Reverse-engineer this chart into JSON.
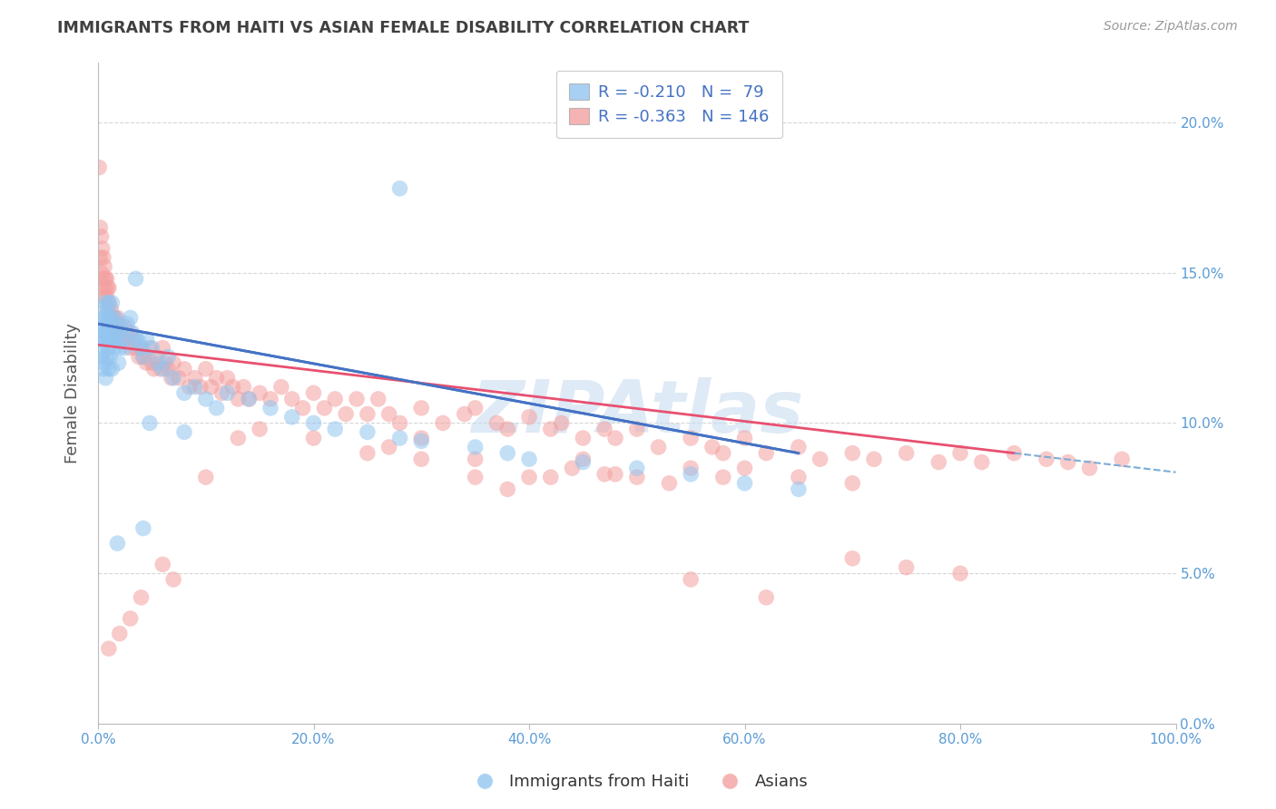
{
  "title": "IMMIGRANTS FROM HAITI VS ASIAN FEMALE DISABILITY CORRELATION CHART",
  "source": "Source: ZipAtlas.com",
  "ylabel": "Female Disability",
  "legend_label1": "Immigrants from Haiti",
  "legend_label2": "Asians",
  "R1": -0.21,
  "N1": 79,
  "R2": -0.363,
  "N2": 146,
  "color_blue": "#92C5F0",
  "color_pink": "#F4A0A0",
  "color_blue_line": "#4472C4",
  "color_pink_line": "#E85070",
  "color_blue_dash": "#7AACD8",
  "background_color": "#FFFFFF",
  "grid_color": "#CCCCCC",
  "title_color": "#404040",
  "axis_color": "#5B9BD5",
  "watermark_color": "#C8DCEF",
  "xlim": [
    0.0,
    1.0
  ],
  "ylim": [
    0.0,
    0.22
  ],
  "haiti_x": [
    0.002,
    0.003,
    0.003,
    0.004,
    0.004,
    0.005,
    0.005,
    0.005,
    0.006,
    0.006,
    0.006,
    0.007,
    0.007,
    0.007,
    0.008,
    0.008,
    0.009,
    0.009,
    0.01,
    0.01,
    0.01,
    0.01,
    0.011,
    0.011,
    0.012,
    0.012,
    0.013,
    0.013,
    0.014,
    0.015,
    0.016,
    0.017,
    0.018,
    0.019,
    0.02,
    0.02,
    0.022,
    0.024,
    0.025,
    0.027,
    0.03,
    0.032,
    0.035,
    0.038,
    0.04,
    0.042,
    0.045,
    0.05,
    0.055,
    0.06,
    0.065,
    0.07,
    0.08,
    0.09,
    0.1,
    0.11,
    0.12,
    0.14,
    0.16,
    0.18,
    0.2,
    0.22,
    0.25,
    0.28,
    0.3,
    0.35,
    0.38,
    0.4,
    0.45,
    0.5,
    0.55,
    0.6,
    0.65,
    0.28,
    0.08,
    0.035,
    0.042,
    0.048,
    0.018
  ],
  "haiti_y": [
    0.132,
    0.138,
    0.125,
    0.13,
    0.122,
    0.128,
    0.133,
    0.118,
    0.135,
    0.12,
    0.127,
    0.14,
    0.115,
    0.13,
    0.136,
    0.122,
    0.128,
    0.133,
    0.135,
    0.14,
    0.125,
    0.118,
    0.13,
    0.122,
    0.135,
    0.128,
    0.14,
    0.118,
    0.13,
    0.125,
    0.135,
    0.128,
    0.133,
    0.12,
    0.132,
    0.125,
    0.13,
    0.128,
    0.125,
    0.133,
    0.135,
    0.13,
    0.128,
    0.127,
    0.125,
    0.122,
    0.128,
    0.125,
    0.12,
    0.118,
    0.122,
    0.115,
    0.11,
    0.112,
    0.108,
    0.105,
    0.11,
    0.108,
    0.105,
    0.102,
    0.1,
    0.098,
    0.097,
    0.095,
    0.094,
    0.092,
    0.09,
    0.088,
    0.087,
    0.085,
    0.083,
    0.08,
    0.078,
    0.178,
    0.097,
    0.148,
    0.065,
    0.1,
    0.06
  ],
  "asian_x": [
    0.001,
    0.002,
    0.002,
    0.003,
    0.003,
    0.004,
    0.004,
    0.005,
    0.005,
    0.006,
    0.006,
    0.007,
    0.007,
    0.008,
    0.008,
    0.009,
    0.009,
    0.01,
    0.01,
    0.01,
    0.012,
    0.013,
    0.014,
    0.015,
    0.016,
    0.017,
    0.018,
    0.02,
    0.02,
    0.022,
    0.024,
    0.025,
    0.027,
    0.03,
    0.03,
    0.032,
    0.035,
    0.038,
    0.04,
    0.042,
    0.045,
    0.048,
    0.05,
    0.052,
    0.055,
    0.058,
    0.06,
    0.062,
    0.065,
    0.068,
    0.07,
    0.075,
    0.08,
    0.085,
    0.09,
    0.095,
    0.1,
    0.105,
    0.11,
    0.115,
    0.12,
    0.125,
    0.13,
    0.135,
    0.14,
    0.15,
    0.16,
    0.17,
    0.18,
    0.19,
    0.2,
    0.21,
    0.22,
    0.23,
    0.24,
    0.25,
    0.26,
    0.27,
    0.28,
    0.3,
    0.32,
    0.34,
    0.35,
    0.37,
    0.38,
    0.4,
    0.42,
    0.43,
    0.45,
    0.47,
    0.48,
    0.5,
    0.52,
    0.55,
    0.57,
    0.58,
    0.6,
    0.62,
    0.65,
    0.67,
    0.7,
    0.72,
    0.75,
    0.78,
    0.8,
    0.82,
    0.85,
    0.88,
    0.9,
    0.92,
    0.95,
    0.55,
    0.58,
    0.6,
    0.65,
    0.7,
    0.45,
    0.48,
    0.3,
    0.35,
    0.4,
    0.25,
    0.2,
    0.5,
    0.53,
    0.44,
    0.47,
    0.27,
    0.3,
    0.35,
    0.38,
    0.42,
    0.15,
    0.13,
    0.1,
    0.07,
    0.06,
    0.04,
    0.03,
    0.02,
    0.01,
    0.55,
    0.62,
    0.7,
    0.75,
    0.8
  ],
  "asian_y": [
    0.185,
    0.155,
    0.165,
    0.15,
    0.162,
    0.145,
    0.158,
    0.148,
    0.155,
    0.142,
    0.152,
    0.148,
    0.145,
    0.142,
    0.148,
    0.138,
    0.145,
    0.14,
    0.145,
    0.135,
    0.138,
    0.135,
    0.132,
    0.135,
    0.132,
    0.13,
    0.135,
    0.132,
    0.128,
    0.13,
    0.128,
    0.132,
    0.128,
    0.13,
    0.125,
    0.128,
    0.125,
    0.122,
    0.125,
    0.122,
    0.12,
    0.125,
    0.12,
    0.118,
    0.122,
    0.118,
    0.125,
    0.12,
    0.118,
    0.115,
    0.12,
    0.115,
    0.118,
    0.112,
    0.115,
    0.112,
    0.118,
    0.112,
    0.115,
    0.11,
    0.115,
    0.112,
    0.108,
    0.112,
    0.108,
    0.11,
    0.108,
    0.112,
    0.108,
    0.105,
    0.11,
    0.105,
    0.108,
    0.103,
    0.108,
    0.103,
    0.108,
    0.103,
    0.1,
    0.105,
    0.1,
    0.103,
    0.105,
    0.1,
    0.098,
    0.102,
    0.098,
    0.1,
    0.095,
    0.098,
    0.095,
    0.098,
    0.092,
    0.095,
    0.092,
    0.09,
    0.095,
    0.09,
    0.092,
    0.088,
    0.09,
    0.088,
    0.09,
    0.087,
    0.09,
    0.087,
    0.09,
    0.088,
    0.087,
    0.085,
    0.088,
    0.085,
    0.082,
    0.085,
    0.082,
    0.08,
    0.088,
    0.083,
    0.095,
    0.088,
    0.082,
    0.09,
    0.095,
    0.082,
    0.08,
    0.085,
    0.083,
    0.092,
    0.088,
    0.082,
    0.078,
    0.082,
    0.098,
    0.095,
    0.082,
    0.048,
    0.053,
    0.042,
    0.035,
    0.03,
    0.025,
    0.048,
    0.042,
    0.055,
    0.052,
    0.05
  ],
  "legend_R1_color": "#4472C4",
  "legend_R2_color": "#E85070",
  "legend_N_color": "#4472C4"
}
